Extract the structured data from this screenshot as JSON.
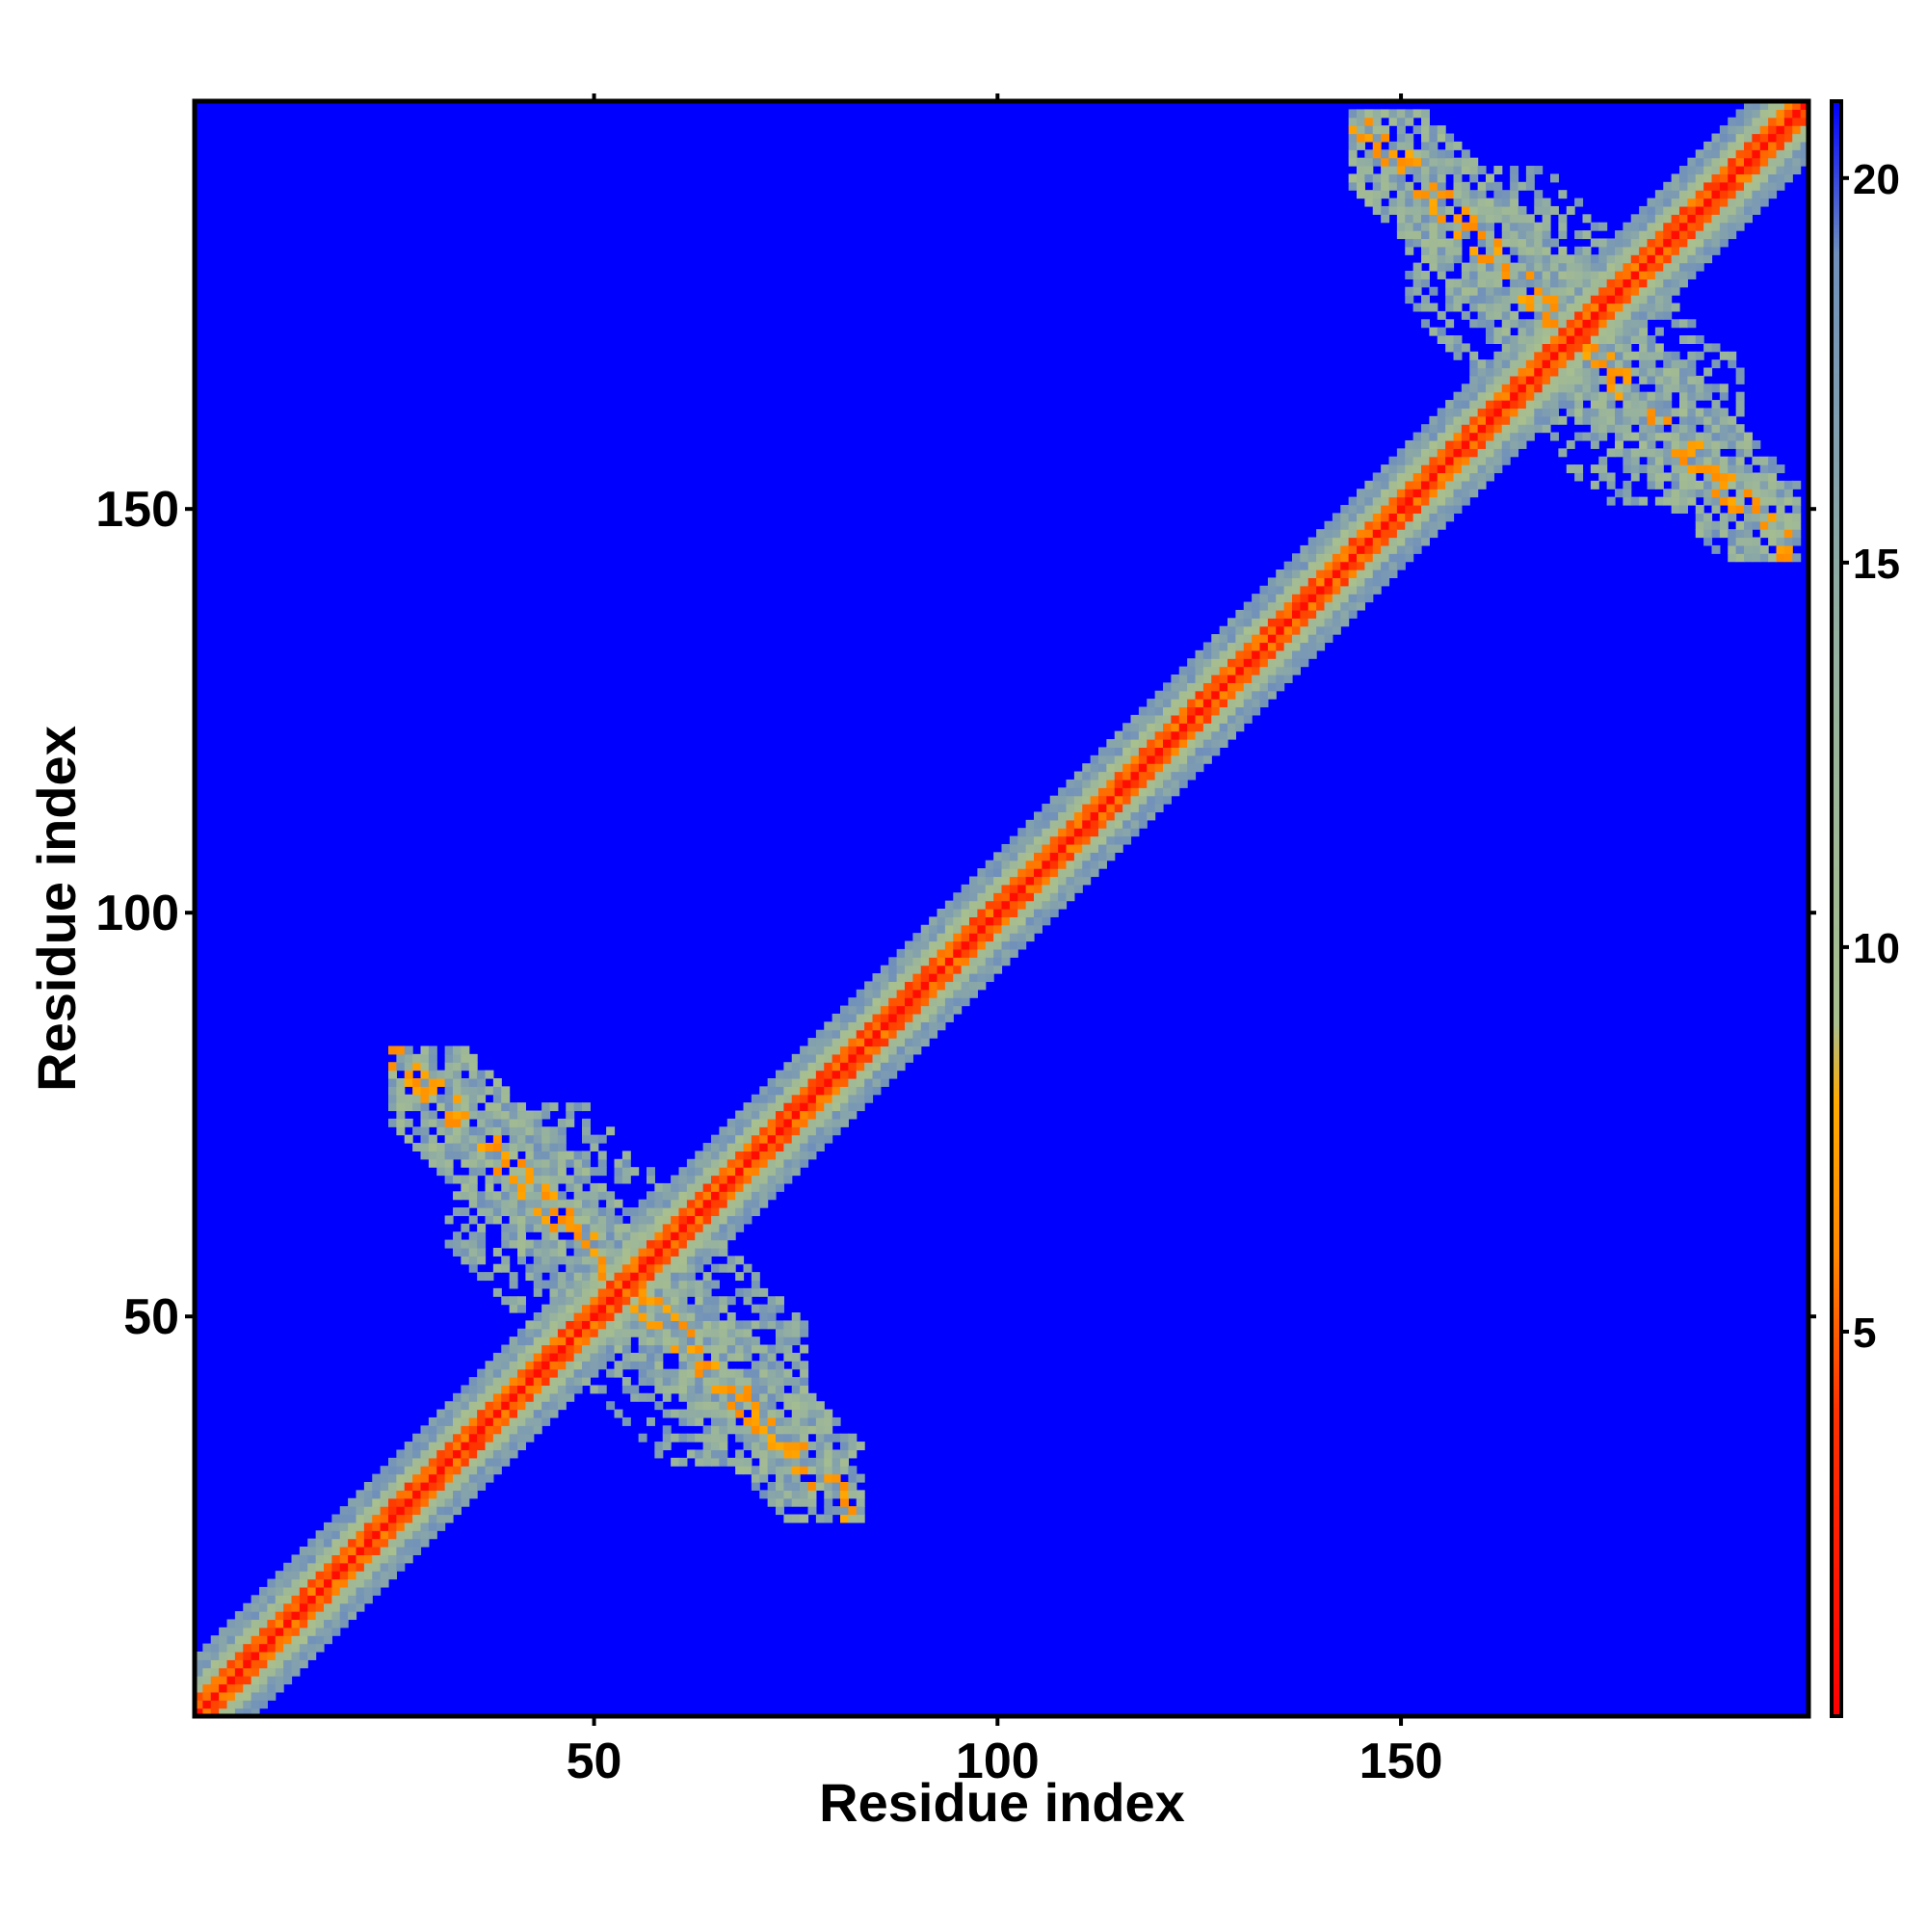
{
  "chart_data": {
    "type": "heatmap",
    "title": "",
    "xlabel": "Residue index",
    "ylabel": "Residue index",
    "xlim": [
      1,
      200
    ],
    "ylim": [
      1,
      200
    ],
    "x_ticks": [
      50,
      100,
      150
    ],
    "y_ticks": [
      50,
      100,
      150
    ],
    "colorbar": {
      "range": [
        0,
        21
      ],
      "ticks": [
        5,
        10,
        15,
        20
      ],
      "colors": [
        {
          "value": 0,
          "color": "#ff0000"
        },
        {
          "value": 4,
          "color": "#ff3300"
        },
        {
          "value": 6,
          "color": "#ff8800"
        },
        {
          "value": 8,
          "color": "#ffaa00"
        },
        {
          "value": 9,
          "color": "#a9bf8e"
        },
        {
          "value": 14,
          "color": "#94b0a0"
        },
        {
          "value": 19,
          "color": "#7090bb"
        },
        {
          "value": 21,
          "color": "#0000ff"
        }
      ]
    },
    "background_color": "#0000ff",
    "background_value": 21,
    "matrix_description_features": {
      "diagonal": {
        "value_at_diagonal": 1,
        "band_value_near": 4,
        "band_value_mid": 9,
        "band_value_outer": 15
      },
      "contact_regions": [
        {
          "x_range": [
            24,
            84
          ],
          "y_range": [
            24,
            84
          ],
          "note": "cross-shaped contact cluster"
        },
        {
          "x_range": [
            143,
            200
          ],
          "y_range": [
            143,
            200
          ],
          "note": "cross-shaped contact cluster"
        }
      ]
    }
  }
}
